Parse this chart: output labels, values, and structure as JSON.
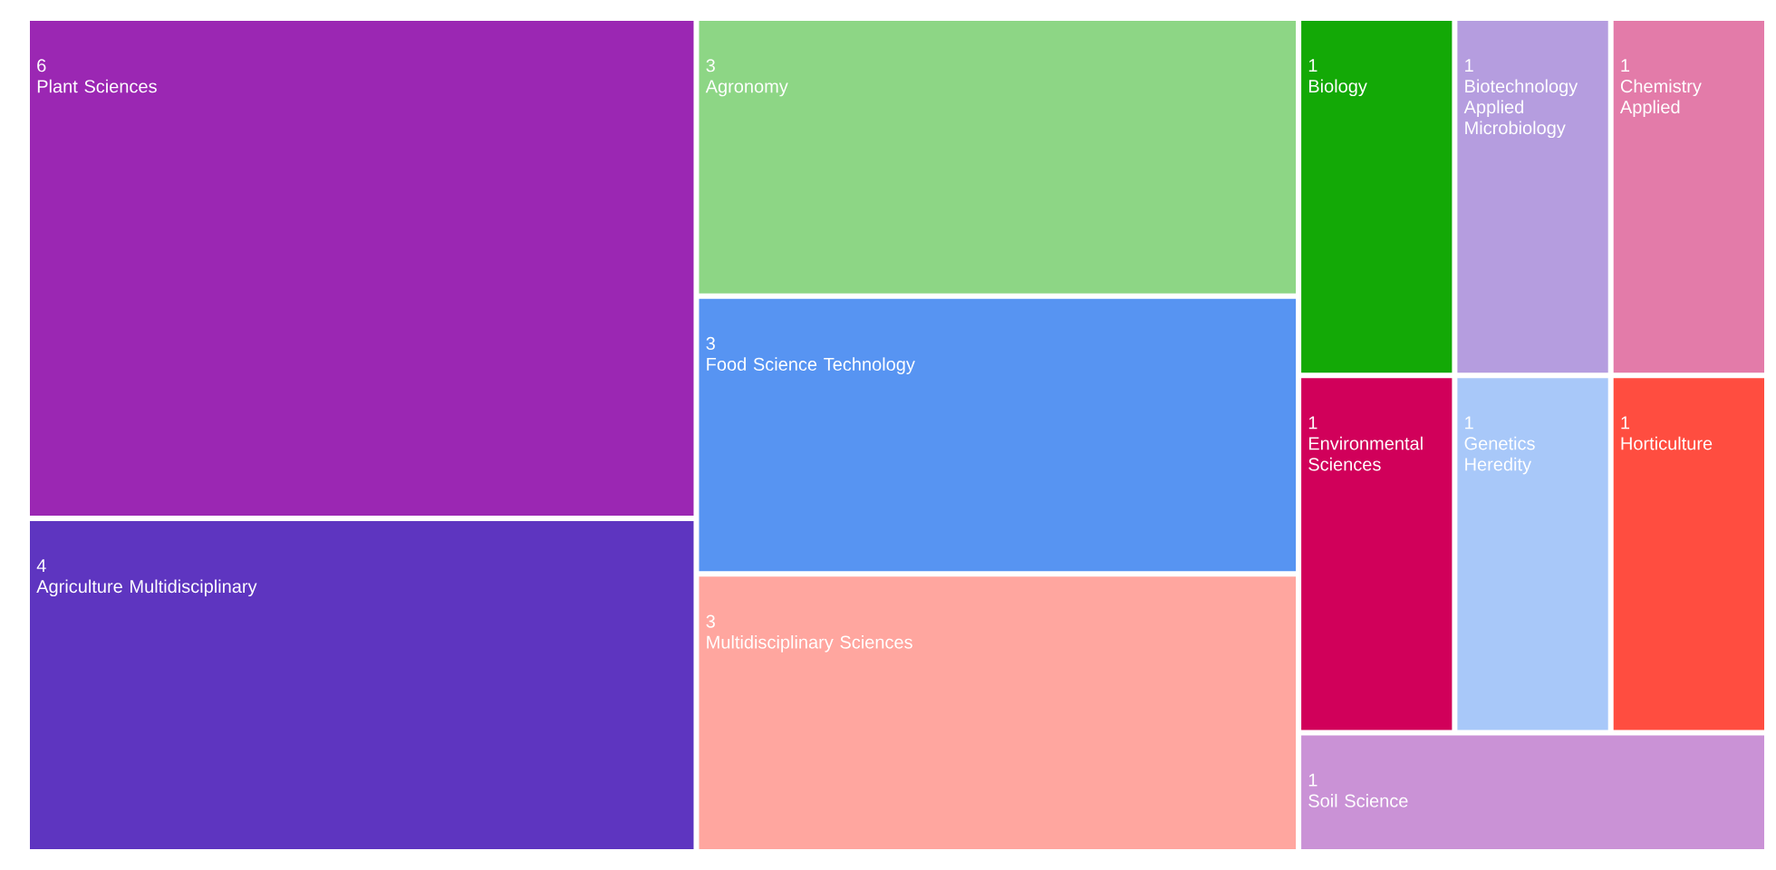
{
  "chart_data": {
    "type": "other",
    "categories": [
      "Plant Sciences",
      "Agriculture Multidisciplinary",
      "Agronomy",
      "Food Science Technology",
      "Multidisciplinary Sciences",
      "Biology",
      "Biotechnology Applied Microbiology",
      "Chemistry Applied",
      "Environmental Sciences",
      "Genetics Heredity",
      "Horticulture",
      "Soil Science"
    ],
    "values": [
      6,
      4,
      3,
      3,
      3,
      1,
      1,
      1,
      1,
      1,
      1,
      1
    ],
    "colors": [
      "#9b27b3",
      "#5e35c0",
      "#8dd685",
      "#5794f2",
      "#ffa69f",
      "#13a906",
      "#b59ddf",
      "#e37ba9",
      "#d1005a",
      "#a8c8f9",
      "#ff4d40",
      "#ca92d6"
    ],
    "data_labels": true
  }
}
